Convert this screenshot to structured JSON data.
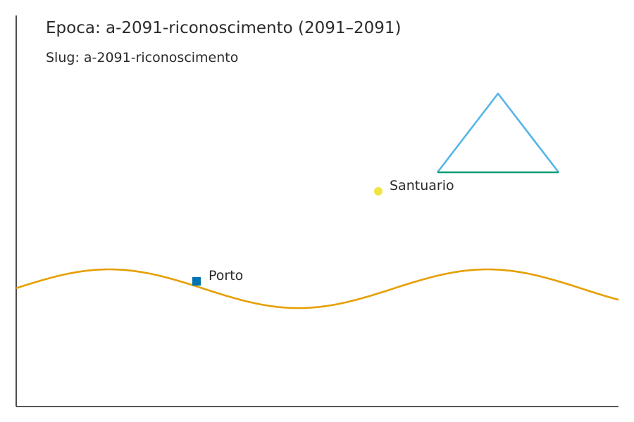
{
  "header": {
    "title": "Epoca: a-2091-riconoscimento (2091–2091)",
    "subtitle": "Slug: a-2091-riconoscimento"
  },
  "places": {
    "porto": {
      "label": "Porto",
      "marker": "square",
      "color": "#0072b2"
    },
    "santuario": {
      "label": "Santuario",
      "marker": "circle",
      "color": "#f0e442"
    }
  },
  "features": {
    "river": {
      "color": "#e69f00"
    },
    "mountain": {
      "outline_color": "#56b4e9",
      "base_color": "#009e73"
    }
  },
  "axes": {
    "color": "#222222"
  }
}
